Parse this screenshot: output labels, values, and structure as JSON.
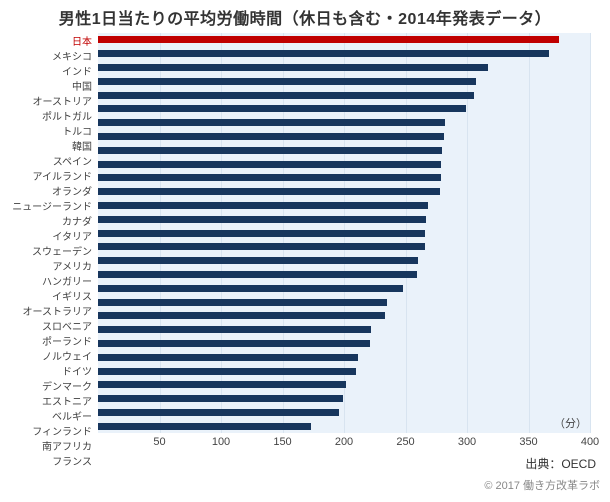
{
  "chart_title": "男性1日当たりの平均労働時間（休日も含む・2014年発表データ）",
  "unit_label": "（分）",
  "source_text": "出典：OECD",
  "copyright_text": "© 2017 働き方改革ラボ",
  "chart_data": {
    "type": "bar",
    "orientation": "horizontal",
    "title": "男性1日当たりの平均労働時間（休日も含む・2014年発表データ）",
    "xlabel": "（分）",
    "ylabel": "",
    "xlim": [
      0,
      400
    ],
    "ticks": [
      50,
      100,
      150,
      200,
      250,
      300,
      350,
      400
    ],
    "grid": true,
    "legend": false,
    "highlight_index": 0,
    "colors": {
      "bar": "#17365d",
      "highlight": "#c00000",
      "plot_bg": "#eaf2fa",
      "gridline": "#d8e4f0"
    },
    "categories": [
      "日本",
      "メキシコ",
      "インド",
      "中国",
      "オーストリア",
      "ポルトガル",
      "トルコ",
      "韓国",
      "スペイン",
      "アイルランド",
      "オランダ",
      "ニュージーランド",
      "カナダ",
      "イタリア",
      "スウェーデン",
      "アメリカ",
      "ハンガリー",
      "イギリス",
      "オーストラリア",
      "スロベニア",
      "ポーランド",
      "ノルウェイ",
      "ドイツ",
      "デンマーク",
      "エストニア",
      "ベルギー",
      "フィンランド",
      "南アフリカ",
      "フランス"
    ],
    "values": [
      375,
      367,
      317,
      307,
      306,
      299,
      282,
      281,
      280,
      279,
      279,
      278,
      268,
      267,
      266,
      266,
      260,
      259,
      248,
      235,
      233,
      222,
      221,
      211,
      210,
      202,
      199,
      196,
      173
    ]
  }
}
